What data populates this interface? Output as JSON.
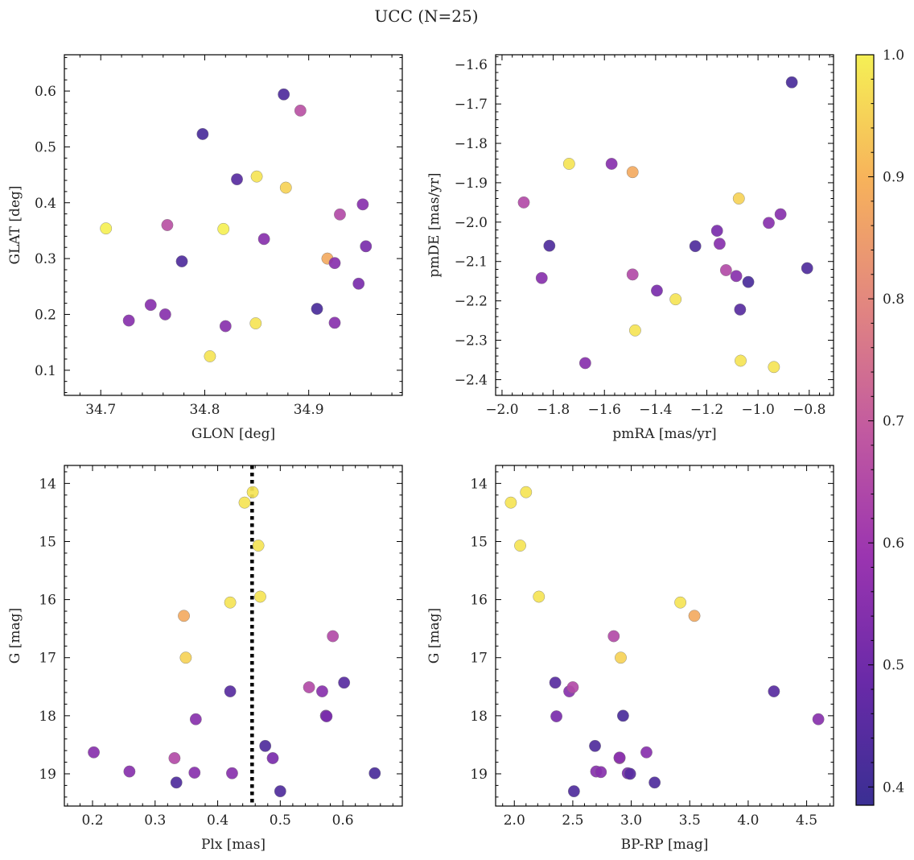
{
  "title": "UCC (N=25)",
  "colorbar": {
    "range": [
      0.385,
      1.0
    ],
    "ticks": [
      0.4,
      0.5,
      0.6,
      0.7,
      0.8,
      0.9,
      1.0
    ],
    "colormap": "plasma",
    "colormap_stops": [
      "#3a2f93",
      "#6a2aa8",
      "#9b35b0",
      "#c25aa0",
      "#e28680",
      "#f7b25b",
      "#f5f055"
    ]
  },
  "chart_data": [
    {
      "type": "scatter",
      "xlabel": "GLON [deg]",
      "ylabel": "GLAT [deg]",
      "xlim": [
        34.665,
        34.99
      ],
      "ylim": [
        0.055,
        0.665
      ],
      "xticks": [
        34.7,
        34.8,
        34.9
      ],
      "yticks": [
        0.1,
        0.2,
        0.3,
        0.4,
        0.5,
        0.6
      ],
      "x": [
        34.705,
        34.727,
        34.748,
        34.762,
        34.764,
        34.778,
        34.798,
        34.805,
        34.818,
        34.82,
        34.831,
        34.849,
        34.85,
        34.857,
        34.876,
        34.878,
        34.892,
        34.908,
        34.918,
        34.925,
        34.925,
        34.93,
        34.948,
        34.952,
        34.955
      ],
      "y": [
        0.354,
        0.189,
        0.217,
        0.2,
        0.36,
        0.295,
        0.523,
        0.125,
        0.353,
        0.179,
        0.442,
        0.184,
        0.447,
        0.335,
        0.594,
        0.427,
        0.565,
        0.21,
        0.3,
        0.185,
        0.292,
        0.379,
        0.255,
        0.397,
        0.322
      ],
      "c": [
        1.0,
        0.55,
        0.55,
        0.55,
        0.67,
        0.43,
        0.42,
        0.98,
        1.0,
        0.55,
        0.45,
        0.98,
        0.98,
        0.55,
        0.43,
        0.95,
        0.67,
        0.42,
        0.88,
        0.55,
        0.55,
        0.65,
        0.52,
        0.55,
        0.52
      ]
    },
    {
      "type": "scatter",
      "xlabel": "pmRA [mas/yr]",
      "ylabel": "pmDE [mas/yr]",
      "xlim": [
        -2.025,
        -0.705
      ],
      "ylim": [
        -2.44,
        -1.575
      ],
      "xticks": [
        -2.0,
        -1.8,
        -1.6,
        -1.4,
        -1.2,
        -1.0,
        -0.8
      ],
      "yticks": [
        -2.4,
        -2.3,
        -2.2,
        -2.1,
        -2.0,
        -1.9,
        -1.8,
        -1.7,
        -1.6
      ],
      "x": [
        -1.915,
        -1.815,
        -1.845,
        -1.738,
        -1.572,
        -1.49,
        -1.49,
        -1.48,
        -1.675,
        -1.395,
        -1.322,
        -1.245,
        -1.16,
        -1.15,
        -1.125,
        -1.085,
        -1.075,
        -1.07,
        -1.068,
        -1.038,
        -0.958,
        -0.938,
        -0.912,
        -0.868,
        -0.808
      ],
      "y": [
        -1.95,
        -2.06,
        -2.142,
        -1.852,
        -1.852,
        -1.873,
        -2.133,
        -2.275,
        -2.358,
        -2.174,
        -2.196,
        -2.061,
        -2.022,
        -2.055,
        -2.122,
        -2.137,
        -1.94,
        -2.222,
        -2.352,
        -2.152,
        -2.002,
        -2.368,
        -1.98,
        -1.645,
        -2.117
      ],
      "c": [
        0.65,
        0.43,
        0.55,
        0.98,
        0.55,
        0.88,
        0.65,
        0.98,
        0.55,
        0.52,
        0.98,
        0.43,
        0.52,
        0.55,
        0.65,
        0.55,
        0.95,
        0.45,
        0.98,
        0.42,
        0.55,
        0.98,
        0.55,
        0.42,
        0.43
      ]
    },
    {
      "type": "scatter",
      "xlabel": "Plx [mas]",
      "ylabel": "G [mag]",
      "xlim": [
        0.155,
        0.695
      ],
      "ylim": [
        19.555,
        13.69
      ],
      "invert_y": true,
      "xticks": [
        0.2,
        0.3,
        0.4,
        0.5,
        0.6
      ],
      "yticks": [
        14,
        15,
        16,
        17,
        18,
        19
      ],
      "vline": {
        "x": 0.455,
        "style": "dotted",
        "color": "#000000"
      },
      "x": [
        0.202,
        0.259,
        0.331,
        0.334,
        0.346,
        0.349,
        0.363,
        0.365,
        0.42,
        0.42,
        0.423,
        0.443,
        0.456,
        0.465,
        0.468,
        0.476,
        0.488,
        0.5,
        0.546,
        0.567,
        0.573,
        0.574,
        0.584,
        0.602,
        0.651
      ],
      "y": [
        18.63,
        18.96,
        18.73,
        19.15,
        16.28,
        17.0,
        18.98,
        18.06,
        16.05,
        17.58,
        18.99,
        14.33,
        14.15,
        15.07,
        15.95,
        18.52,
        18.73,
        19.3,
        17.51,
        17.58,
        18.0,
        18.01,
        16.63,
        17.43,
        18.99
      ],
      "c": [
        0.55,
        0.55,
        0.65,
        0.43,
        0.88,
        0.95,
        0.55,
        0.55,
        0.98,
        0.45,
        0.55,
        0.98,
        0.98,
        0.98,
        0.98,
        0.43,
        0.52,
        0.43,
        0.65,
        0.55,
        0.52,
        0.52,
        0.65,
        0.45,
        0.42
      ]
    },
    {
      "type": "scatter",
      "xlabel": "BP-RP [mag]",
      "ylabel": "G [mag]",
      "xlim": [
        1.84,
        4.73
      ],
      "ylim": [
        19.555,
        13.69
      ],
      "invert_y": true,
      "xticks": [
        2.0,
        2.5,
        3.0,
        3.5,
        4.0,
        4.5
      ],
      "yticks": [
        14,
        15,
        16,
        17,
        18,
        19
      ],
      "x": [
        1.97,
        2.1,
        2.05,
        2.21,
        2.35,
        2.36,
        2.47,
        2.5,
        2.51,
        2.69,
        2.7,
        2.74,
        2.85,
        2.9,
        2.91,
        2.93,
        2.97,
        2.99,
        3.13,
        3.2,
        3.42,
        3.54,
        4.22,
        4.6,
        2.9
      ],
      "y": [
        14.33,
        14.15,
        15.07,
        15.95,
        17.43,
        18.01,
        17.58,
        17.51,
        19.3,
        18.52,
        18.96,
        18.97,
        16.63,
        18.73,
        17.0,
        18.0,
        18.99,
        19.0,
        18.63,
        19.15,
        16.05,
        16.28,
        17.58,
        18.06,
        18.72
      ],
      "c": [
        0.98,
        0.98,
        0.98,
        0.98,
        0.45,
        0.52,
        0.55,
        0.65,
        0.43,
        0.43,
        0.55,
        0.55,
        0.65,
        0.65,
        0.95,
        0.42,
        0.52,
        0.45,
        0.55,
        0.43,
        0.98,
        0.88,
        0.45,
        0.55,
        0.55
      ]
    }
  ]
}
